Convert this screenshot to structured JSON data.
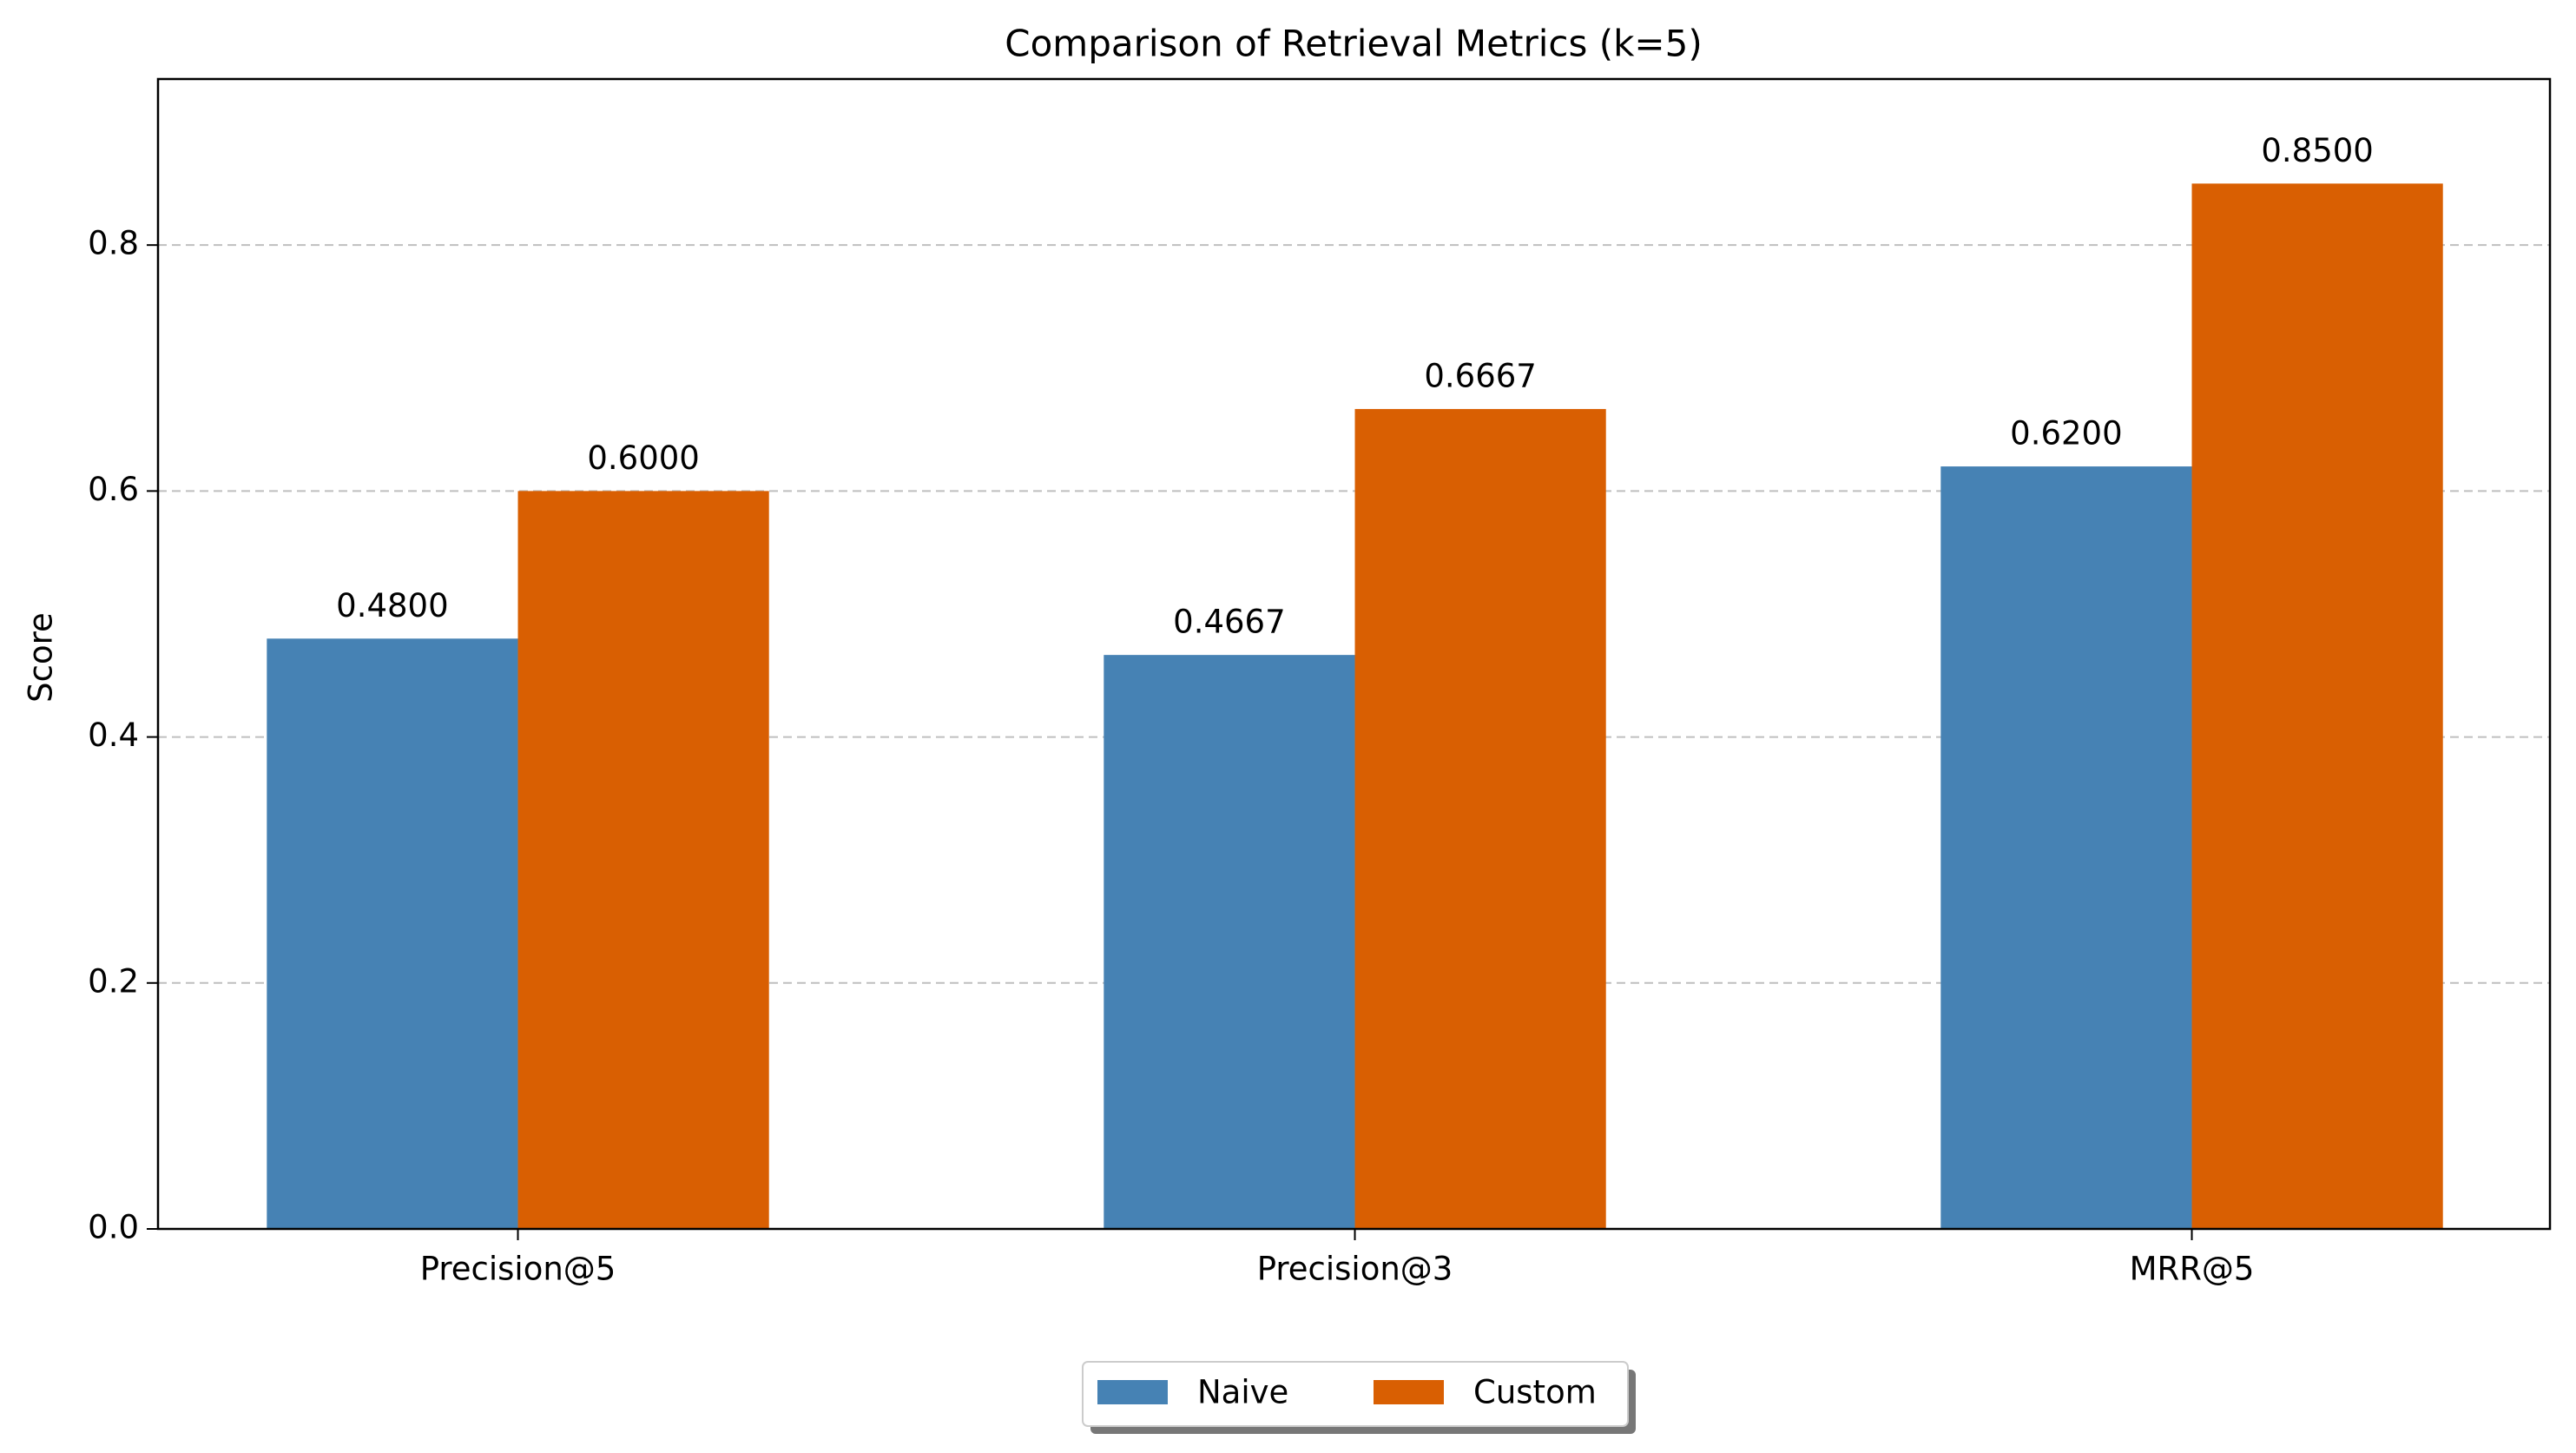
{
  "chart_data": {
    "type": "bar",
    "title": "Comparison of Retrieval Metrics (k=5)",
    "y_label": "Score",
    "categories": [
      "Precision@5",
      "Precision@3",
      "MRR@5"
    ],
    "series": [
      {
        "name": "Naive",
        "color": "#4682b4",
        "values": [
          0.48,
          0.4667,
          0.62
        ],
        "value_labels": [
          "0.4800",
          "0.4667",
          "0.6200"
        ]
      },
      {
        "name": "Custom",
        "color": "#d95f02",
        "values": [
          0.6,
          0.6667,
          0.85
        ],
        "value_labels": [
          "0.6000",
          "0.6667",
          "0.8500"
        ]
      }
    ],
    "ylim": [
      0,
      0.935
    ],
    "yticks": [
      {
        "value": 0,
        "label": "0.0"
      },
      0.2,
      0.4,
      0.6,
      0.8
    ],
    "grid": true,
    "legend": "lower center"
  }
}
